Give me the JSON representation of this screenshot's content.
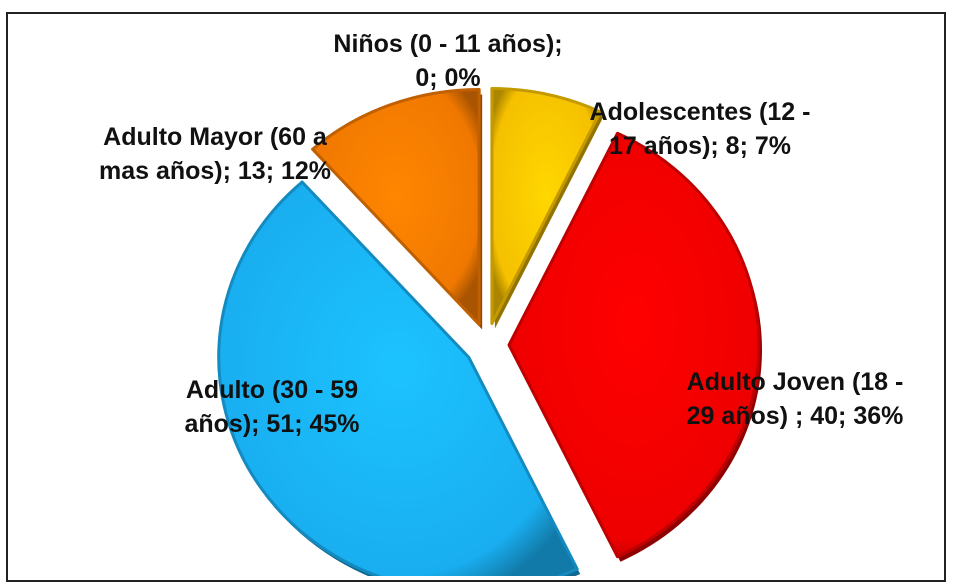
{
  "chart_data": {
    "type": "pie",
    "title": "",
    "exploded": true,
    "style": "3d-beveled",
    "slices": [
      {
        "name": "Niños (0 - 11 años)",
        "value": 0,
        "percent": "0%",
        "color": "#7a7a7a",
        "label_lines": [
          "Niños (0 - 11 años);",
          "0; 0%"
        ]
      },
      {
        "name": "Adolescentes (12 - 17 años)",
        "value": 8,
        "percent": "7%",
        "color": "#f5c000",
        "label_lines": [
          "Adolescentes  (12 -",
          "17 años); 8; 7%"
        ]
      },
      {
        "name": "Adulto Joven (18 - 29 años)",
        "value": 40,
        "percent": "36%",
        "color": "#ee0000",
        "label_lines": [
          "Adulto Joven (18 -",
          "29 años) ; 40; 36%"
        ]
      },
      {
        "name": "Adulto (30 - 59 años)",
        "value": 51,
        "percent": "45%",
        "color": "#19aef0",
        "label_lines": [
          "Adulto (30 - 59",
          "años); 51; 45%"
        ]
      },
      {
        "name": "Adulto Mayor (60 a mas años)",
        "value": 13,
        "percent": "12%",
        "color": "#f07800",
        "label_lines": [
          "Adulto Mayor (60 a",
          "mas años); 13; 12%"
        ]
      }
    ]
  }
}
